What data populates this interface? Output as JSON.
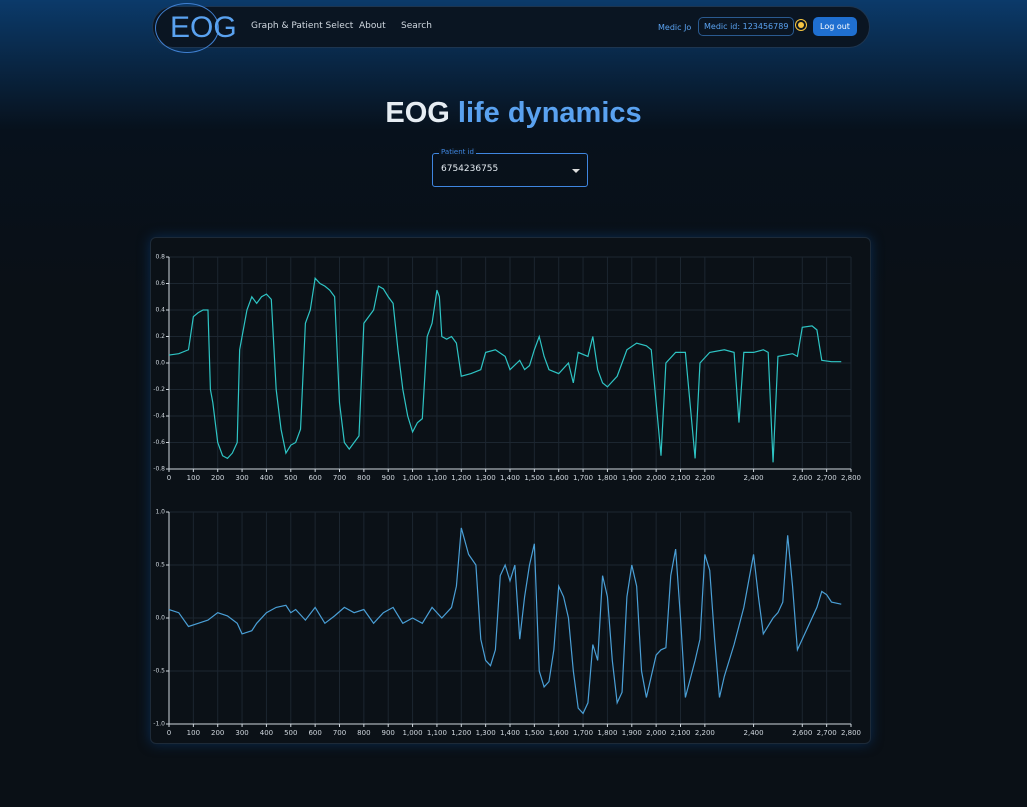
{
  "nav": {
    "logo": "EOG",
    "links": [
      "Graph & Patient Select",
      "About",
      "Search"
    ],
    "user": "Medic Jo",
    "medic_id": "Medic id: 123456789",
    "logout": "Log out"
  },
  "heading": {
    "part1": "EOG",
    "part2": "life dynamics"
  },
  "patient_select": {
    "label": "Patient id",
    "value": "6754236755"
  },
  "chart_data": [
    {
      "type": "line",
      "x": [
        0,
        40,
        80,
        100,
        120,
        140,
        160,
        170,
        180,
        200,
        220,
        240,
        260,
        280,
        290,
        300,
        320,
        340,
        360,
        380,
        400,
        420,
        440,
        460,
        480,
        500,
        520,
        540,
        560,
        580,
        600,
        620,
        640,
        660,
        680,
        700,
        720,
        740,
        760,
        780,
        800,
        820,
        840,
        860,
        880,
        900,
        920,
        940,
        960,
        980,
        1000,
        1020,
        1040,
        1060,
        1080,
        1100,
        1110,
        1120,
        1140,
        1160,
        1180,
        1200,
        1240,
        1280,
        1300,
        1340,
        1380,
        1400,
        1440,
        1460,
        1480,
        1500,
        1520,
        1540,
        1560,
        1600,
        1640,
        1660,
        1680,
        1720,
        1740,
        1760,
        1780,
        1800,
        1840,
        1880,
        1920,
        1960,
        1980,
        2000,
        2020,
        2040,
        2080,
        2120,
        2160,
        2180,
        2220,
        2280,
        2320,
        2340,
        2360,
        2400,
        2440,
        2460,
        2480,
        2500,
        2560,
        2580,
        2600,
        2640,
        2660,
        2680,
        2720,
        2760
      ],
      "series": [
        {
          "color": "#2ec4c4",
          "values": [
            0.06,
            0.07,
            0.1,
            0.35,
            0.38,
            0.4,
            0.4,
            -0.2,
            -0.3,
            -0.6,
            -0.7,
            -0.72,
            -0.68,
            -0.6,
            0.1,
            0.2,
            0.4,
            0.5,
            0.45,
            0.5,
            0.52,
            0.48,
            -0.2,
            -0.5,
            -0.68,
            -0.62,
            -0.6,
            -0.5,
            0.3,
            0.4,
            0.64,
            0.6,
            0.58,
            0.55,
            0.5,
            -0.3,
            -0.6,
            -0.65,
            -0.6,
            -0.55,
            0.3,
            0.35,
            0.4,
            0.58,
            0.56,
            0.5,
            0.45,
            0.1,
            -0.2,
            -0.4,
            -0.52,
            -0.45,
            -0.42,
            0.2,
            0.3,
            0.55,
            0.5,
            0.2,
            0.18,
            0.2,
            0.15,
            -0.1,
            -0.08,
            -0.05,
            0.08,
            0.1,
            0.05,
            -0.05,
            0.02,
            -0.05,
            -0.02,
            0.1,
            0.2,
            0.05,
            -0.05,
            -0.08,
            0,
            -0.15,
            0.08,
            0.05,
            0.2,
            -0.05,
            -0.15,
            -0.18,
            -0.1,
            0.1,
            0.15,
            0.13,
            0.1,
            -0.3,
            -0.7,
            0,
            0.08,
            0.08,
            -0.72,
            0,
            0.08,
            0.1,
            0.08,
            -0.45,
            0.08,
            0.08,
            0.1,
            0.08,
            -0.75,
            0.05,
            0.07,
            0.05,
            0.27,
            0.28,
            0.25,
            0.02,
            0.01,
            0.01
          ]
        }
      ],
      "xlim": [
        0,
        2800
      ],
      "ylim": [
        -0.8,
        0.8
      ],
      "xticks": [
        0,
        100,
        200,
        300,
        400,
        500,
        600,
        700,
        800,
        900,
        {
          "value": 1000,
          "label": "1,000"
        },
        {
          "value": 1100,
          "label": "1,100"
        },
        {
          "value": 1200,
          "label": "1,200"
        },
        {
          "value": 1300,
          "label": "1,300"
        },
        {
          "value": 1400,
          "label": "1,400"
        },
        {
          "value": 1500,
          "label": "1,500"
        },
        {
          "value": 1600,
          "label": "1,600"
        },
        {
          "value": 1700,
          "label": "1,700"
        },
        {
          "value": 1800,
          "label": "1,800"
        },
        {
          "value": 1900,
          "label": "1,900"
        },
        {
          "value": 2000,
          "label": "2,000"
        },
        {
          "value": 2100,
          "label": "2,100"
        },
        {
          "value": 2200,
          "label": "2,200"
        },
        {
          "value": 2400,
          "label": "2,400"
        },
        {
          "value": 2600,
          "label": "2,600"
        },
        {
          "value": 2700,
          "label": "2,700"
        },
        {
          "value": 2800,
          "label": "2,800"
        }
      ],
      "yticks": [
        -0.8,
        -0.6,
        -0.4,
        -0.2,
        {
          "value": 0,
          "label": "0.0"
        },
        0.2,
        0.4,
        0.6,
        0.8
      ],
      "grid": true
    },
    {
      "type": "line",
      "x": [
        0,
        40,
        80,
        120,
        160,
        200,
        240,
        280,
        300,
        340,
        360,
        400,
        440,
        480,
        500,
        520,
        560,
        600,
        640,
        680,
        720,
        760,
        800,
        840,
        880,
        920,
        960,
        1000,
        1040,
        1080,
        1120,
        1160,
        1180,
        1200,
        1230,
        1260,
        1280,
        1300,
        1320,
        1340,
        1360,
        1380,
        1400,
        1420,
        1440,
        1460,
        1480,
        1500,
        1520,
        1540,
        1560,
        1580,
        1600,
        1620,
        1640,
        1660,
        1680,
        1700,
        1720,
        1740,
        1760,
        1780,
        1800,
        1820,
        1840,
        1860,
        1880,
        1900,
        1920,
        1940,
        1960,
        1980,
        2000,
        2020,
        2040,
        2060,
        2080,
        2100,
        2120,
        2160,
        2180,
        2200,
        2220,
        2240,
        2260,
        2280,
        2320,
        2360,
        2400,
        2420,
        2440,
        2480,
        2500,
        2520,
        2540,
        2560,
        2580,
        2620,
        2660,
        2680,
        2700,
        2720,
        2760
      ],
      "series": [
        {
          "color": "#4a9fd6",
          "values": [
            0.08,
            0.05,
            -0.08,
            -0.05,
            -0.02,
            0.05,
            0.02,
            -0.05,
            -0.15,
            -0.12,
            -0.05,
            0.05,
            0.1,
            0.12,
            0.05,
            0.08,
            -0.02,
            0.1,
            -0.05,
            0.02,
            0.1,
            0.05,
            0.08,
            -0.05,
            0.05,
            0.1,
            -0.05,
            0,
            -0.05,
            0.1,
            0,
            0.1,
            0.3,
            0.85,
            0.6,
            0.5,
            -0.2,
            -0.4,
            -0.45,
            -0.3,
            0.4,
            0.5,
            0.35,
            0.5,
            -0.2,
            0.2,
            0.5,
            0.7,
            -0.5,
            -0.65,
            -0.6,
            -0.3,
            0.3,
            0.2,
            0,
            -0.5,
            -0.85,
            -0.9,
            -0.8,
            -0.25,
            -0.4,
            0.4,
            0.2,
            -0.4,
            -0.8,
            -0.7,
            0.2,
            0.5,
            0.3,
            -0.5,
            -0.75,
            -0.55,
            -0.35,
            -0.3,
            -0.28,
            0.4,
            0.65,
            0,
            -0.75,
            -0.4,
            -0.2,
            0.6,
            0.45,
            -0.2,
            -0.75,
            -0.55,
            -0.25,
            0.1,
            0.6,
            0.2,
            -0.15,
            0,
            0.05,
            0.15,
            0.78,
            0.3,
            -0.3,
            -0.1,
            0.1,
            0.25,
            0.22,
            0.15,
            0.13
          ]
        }
      ],
      "xlim": [
        0,
        2800
      ],
      "ylim": [
        -1,
        1
      ],
      "xticks": [
        0,
        100,
        200,
        300,
        400,
        500,
        600,
        700,
        800,
        900,
        {
          "value": 1000,
          "label": "1,000"
        },
        {
          "value": 1100,
          "label": "1,100"
        },
        {
          "value": 1200,
          "label": "1,200"
        },
        {
          "value": 1300,
          "label": "1,300"
        },
        {
          "value": 1400,
          "label": "1,400"
        },
        {
          "value": 1500,
          "label": "1,500"
        },
        {
          "value": 1600,
          "label": "1,600"
        },
        {
          "value": 1700,
          "label": "1,700"
        },
        {
          "value": 1800,
          "label": "1,800"
        },
        {
          "value": 1900,
          "label": "1,900"
        },
        {
          "value": 2000,
          "label": "2,000"
        },
        {
          "value": 2100,
          "label": "2,100"
        },
        {
          "value": 2200,
          "label": "2,200"
        },
        {
          "value": 2400,
          "label": "2,400"
        },
        {
          "value": 2600,
          "label": "2,600"
        },
        {
          "value": 2700,
          "label": "2,700"
        },
        {
          "value": 2800,
          "label": "2,800"
        }
      ],
      "yticks": [
        {
          "value": -1,
          "label": "-1.0"
        },
        -0.5,
        {
          "value": 0,
          "label": "0.0"
        },
        0.5,
        {
          "value": 1,
          "label": "1.0"
        }
      ],
      "grid": true
    }
  ]
}
